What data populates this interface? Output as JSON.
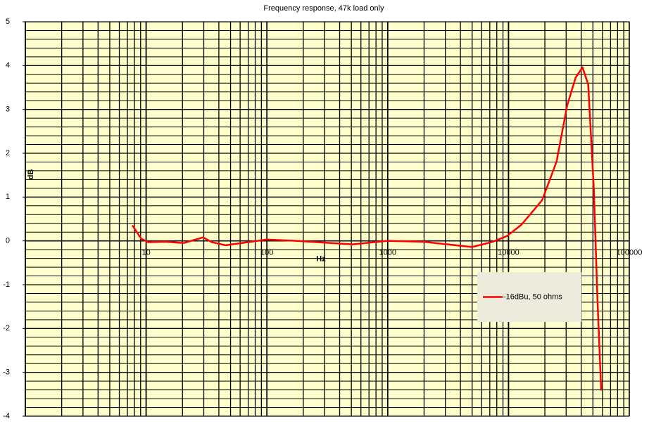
{
  "chart_data": {
    "type": "line",
    "title": "Frequency response, 47k load only",
    "x_label": "Hz",
    "y_label": "dB",
    "x": [
      7.75,
      9.1,
      10.4,
      14.5,
      20.4,
      29.6,
      35,
      45.5,
      100,
      175,
      510,
      1000,
      1960,
      5000,
      7400,
      9700,
      12800,
      19000,
      25000,
      30600,
      36000,
      41000,
      45700,
      50900,
      54600,
      58500
    ],
    "series": [
      {
        "name": "-16dBu, 50 ohms",
        "color": "#ff0000",
        "values": [
          0.34,
          0.05,
          -0.03,
          -0.02,
          -0.05,
          0.08,
          -0.03,
          -0.1,
          0.03,
          0,
          -0.08,
          0,
          -0.02,
          -0.14,
          -0.02,
          0.11,
          0.37,
          0.93,
          1.81,
          3.09,
          3.73,
          3.96,
          3.57,
          1.17,
          -1.39,
          -3.4
        ]
      }
    ],
    "xlim": [
      1,
      100000
    ],
    "xticks": [
      10,
      100,
      1000,
      10000,
      100000
    ],
    "x_log": true,
    "ylim": [
      -4,
      5
    ],
    "yticks": [
      -4,
      -3,
      -2,
      -1,
      0,
      1,
      2,
      3,
      4,
      5
    ],
    "grid": true,
    "legend": "lower right"
  }
}
